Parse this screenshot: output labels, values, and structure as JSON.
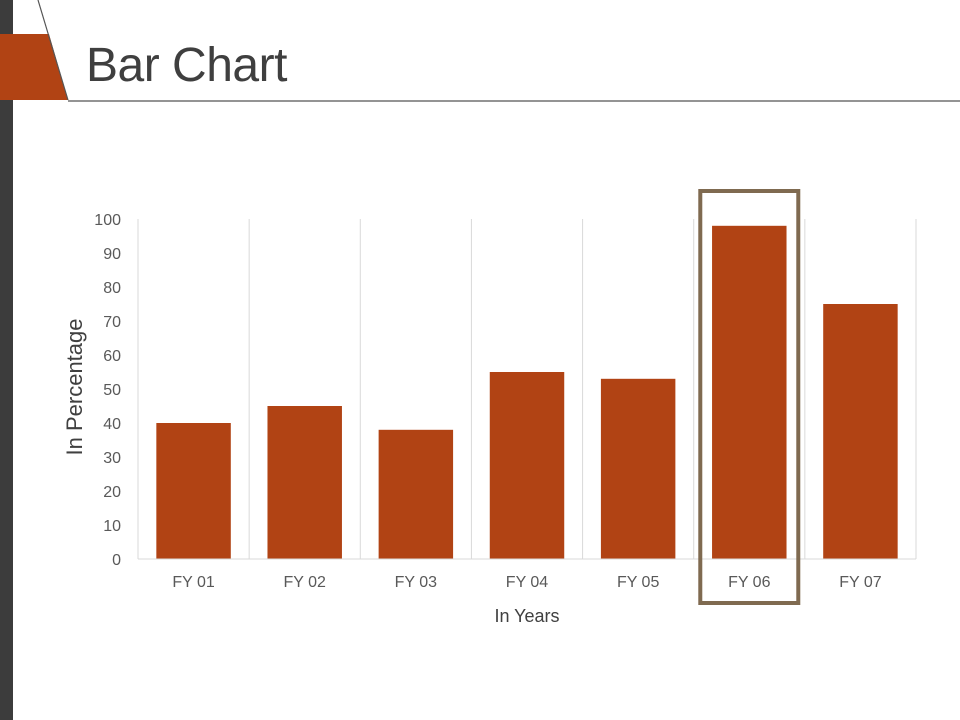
{
  "slide": {
    "title": "Bar Chart"
  },
  "colors": {
    "bar": "#b14314",
    "accent": "#b14314",
    "highlight_box": "#7f6a50",
    "sidebar": "#3c3c3c"
  },
  "chart_data": {
    "type": "bar",
    "categories": [
      "FY 01",
      "FY 02",
      "FY 03",
      "FY 04",
      "FY 05",
      "FY 06",
      "FY 07"
    ],
    "values": [
      40,
      45,
      38,
      55,
      53,
      98,
      75
    ],
    "xlabel": "In Years",
    "ylabel": "In Percentage",
    "ylim": [
      0,
      100
    ],
    "yticks": [
      0,
      10,
      20,
      30,
      40,
      50,
      60,
      70,
      80,
      90,
      100
    ],
    "grid": "vertical",
    "highlighted_category": "FY 06"
  }
}
